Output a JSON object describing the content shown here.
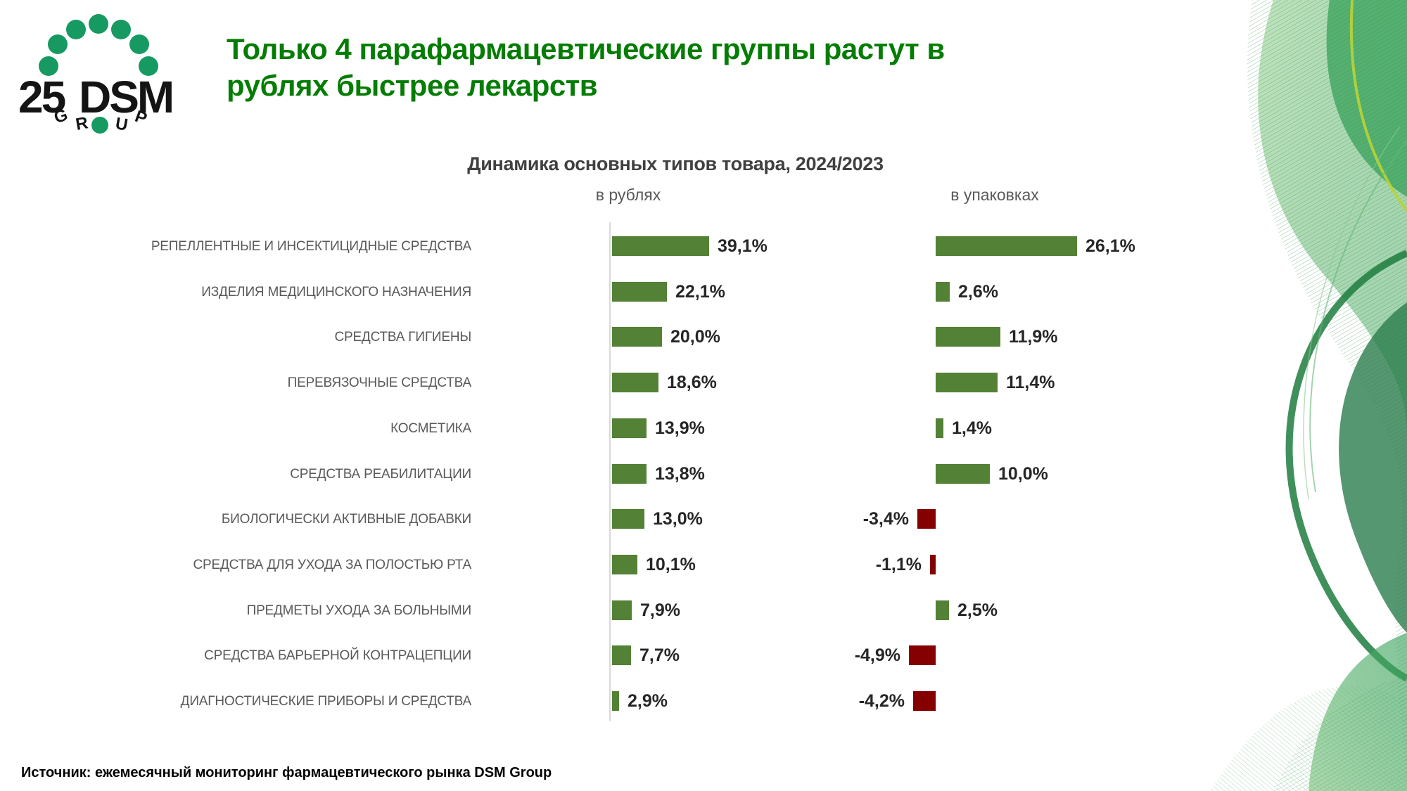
{
  "slide": {
    "title_line1": "Только 4 парафармацевтические группы растут в",
    "title_line2": "рублях быстрее лекарств",
    "source": "Источник: ежемесячный мониторинг фармацевтического рынка DSM Group"
  },
  "logo": {
    "number": "25",
    "name": "DSM",
    "group_letters": [
      "G",
      "R",
      "U",
      "P"
    ]
  },
  "chart_data": {
    "type": "bar",
    "orientation": "horizontal",
    "title": "Динамика основных типов товара, 2024/2023",
    "categories": [
      "РЕПЕЛЛЕНТНЫЕ И ИНСЕКТИЦИДНЫЕ СРЕДСТВА",
      "ИЗДЕЛИЯ МЕДИЦИНСКОГО НАЗНАЧЕНИЯ",
      "СРЕДСТВА ГИГИЕНЫ",
      "ПЕРЕВЯЗОЧНЫЕ СРЕДСТВА",
      "КОСМЕТИКА",
      "СРЕДСТВА РЕАБИЛИТАЦИИ",
      "БИОЛОГИЧЕСКИ АКТИВНЫЕ ДОБАВКИ",
      "СРЕДСТВА ДЛЯ УХОДА ЗА ПОЛОСТЬЮ РТА",
      "ПРЕДМЕТЫ УХОДА ЗА БОЛЬНЫМИ",
      "СРЕДСТВА БАРЬЕРНОЙ КОНТРАЦЕПЦИИ",
      "ДИАГНОСТИЧЕСКИЕ ПРИБОРЫ И СРЕДСТВА"
    ],
    "series": [
      {
        "name": "в рублях",
        "values": [
          39.1,
          22.1,
          20.0,
          18.6,
          13.9,
          13.8,
          13.0,
          10.1,
          7.9,
          7.7,
          2.9
        ],
        "labels": [
          "39,1%",
          "22,1%",
          "20,0%",
          "18,6%",
          "13,9%",
          "13,8%",
          "13,0%",
          "10,1%",
          "7,9%",
          "7,7%",
          "2,9%"
        ]
      },
      {
        "name": "в упаковках",
        "values": [
          26.1,
          2.6,
          11.9,
          11.4,
          1.4,
          10.0,
          -3.4,
          -1.1,
          2.5,
          -4.9,
          -4.2
        ],
        "labels": [
          "26,1%",
          "2,6%",
          "11,9%",
          "11,4%",
          "1,4%",
          "10,0%",
          "-3,4%",
          "-1,1%",
          "2,5%",
          "-4,9%",
          "-4,2%"
        ]
      }
    ],
    "colors": {
      "positive": "#538135",
      "negative": "#850000"
    },
    "axis_color": "#d9d9d9",
    "grid": false,
    "legend_position": "column-headers"
  },
  "colors": {
    "title_green": "#057d05",
    "logo_dot_green": "#169a62",
    "category_gray": "#595959",
    "value_dark": "#262626"
  }
}
